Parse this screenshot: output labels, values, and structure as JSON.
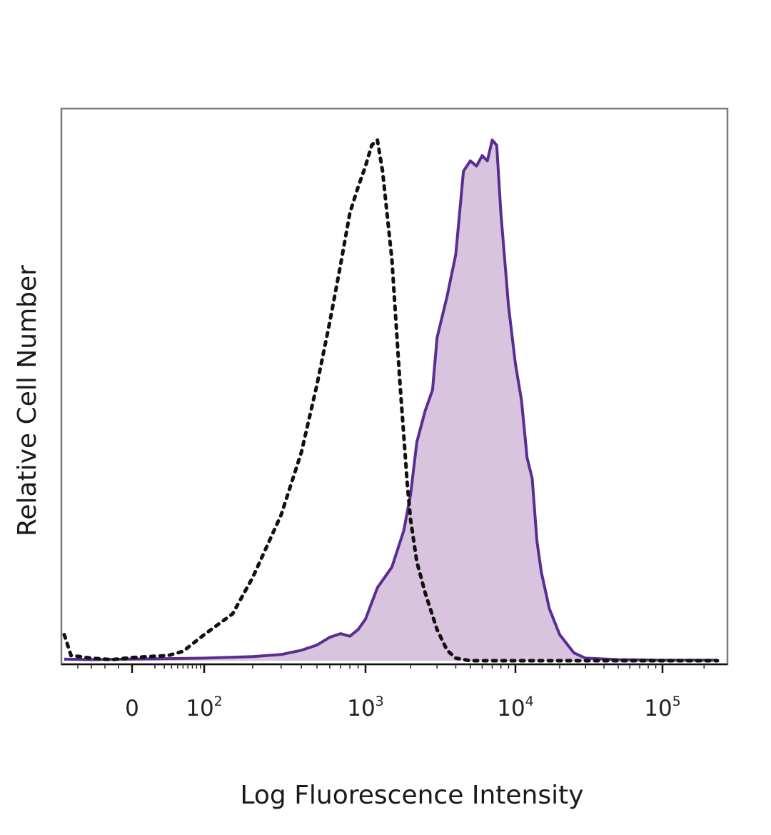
{
  "chart_data": {
    "type": "area",
    "title": "",
    "xlabel": "Log Fluorescence Intensity",
    "ylabel": "Relative Cell Number",
    "x_scale": "biexponential",
    "xlim": [
      -50,
      250000
    ],
    "ylim": [
      0,
      1.06
    ],
    "grid": false,
    "legend": "none",
    "x_ticks": [
      {
        "value": 0,
        "base": "0",
        "exp": ""
      },
      {
        "value": 100,
        "base": "10",
        "exp": "2"
      },
      {
        "value": 1000,
        "base": "10",
        "exp": "3"
      },
      {
        "value": 10000,
        "base": "10",
        "exp": "4"
      },
      {
        "value": 100000,
        "base": "10",
        "exp": "5"
      }
    ],
    "series": [
      {
        "style": "dotted-line",
        "color": "#111111",
        "x": [
          -50,
          -45,
          -30,
          -15,
          0,
          25,
          50,
          100,
          150,
          200,
          300,
          400,
          500,
          600,
          700,
          800,
          900,
          1000,
          1100,
          1200,
          1300,
          1500,
          1700,
          1900,
          2000,
          2200,
          2500,
          3000,
          3500,
          4000,
          5000,
          10000,
          100000,
          250000
        ],
        "y": [
          0.05,
          0.01,
          0.005,
          0.002,
          0.006,
          0.01,
          0.018,
          0.05,
          0.09,
          0.16,
          0.28,
          0.4,
          0.53,
          0.65,
          0.76,
          0.86,
          0.91,
          0.95,
          0.99,
          1.0,
          0.94,
          0.77,
          0.53,
          0.34,
          0.27,
          0.19,
          0.13,
          0.06,
          0.02,
          0.005,
          0.0,
          0.0,
          0.0,
          0.0
        ]
      },
      {
        "style": "filled",
        "color": "#5a2d91",
        "fill": "#d8c4de",
        "x": [
          -50,
          -30,
          0,
          100,
          200,
          300,
          400,
          500,
          600,
          700,
          800,
          900,
          1000,
          1200,
          1500,
          1800,
          2000,
          2200,
          2500,
          2800,
          3000,
          3500,
          4000,
          4500,
          5000,
          5500,
          6000,
          6500,
          7000,
          7500,
          8000,
          9000,
          10000,
          11000,
          12000,
          13000,
          14000,
          15000,
          17000,
          20000,
          25000,
          30000,
          50000,
          100000,
          250000
        ],
        "y": [
          0.003,
          0.002,
          0.003,
          0.005,
          0.008,
          0.012,
          0.02,
          0.03,
          0.045,
          0.052,
          0.047,
          0.06,
          0.08,
          0.14,
          0.18,
          0.25,
          0.32,
          0.42,
          0.48,
          0.52,
          0.62,
          0.7,
          0.78,
          0.94,
          0.96,
          0.95,
          0.97,
          0.96,
          1.0,
          0.99,
          0.86,
          0.68,
          0.57,
          0.5,
          0.39,
          0.35,
          0.23,
          0.17,
          0.1,
          0.05,
          0.015,
          0.005,
          0.002,
          0.001,
          0.001
        ]
      }
    ]
  }
}
